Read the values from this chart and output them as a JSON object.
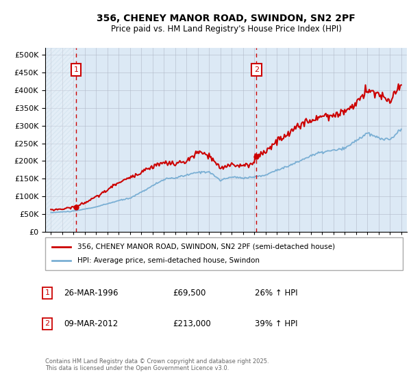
{
  "title_line1": "356, CHENEY MANOR ROAD, SWINDON, SN2 2PF",
  "title_line2": "Price paid vs. HM Land Registry's House Price Index (HPI)",
  "plot_bg_color": "#dce9f5",
  "hatch_color": "#b8cfe0",
  "grid_color": "#b0b8c8",
  "red_line_color": "#cc0000",
  "blue_line_color": "#7aafd4",
  "marker_color": "#cc0000",
  "vline_color": "#cc0000",
  "annotation_box_color": "#cc0000",
  "legend_label_red": "356, CHENEY MANOR ROAD, SWINDON, SN2 2PF (semi-detached house)",
  "legend_label_blue": "HPI: Average price, semi-detached house, Swindon",
  "purchase1_date": "26-MAR-1996",
  "purchase1_price": 69500,
  "purchase1_hpi": "26% ↑ HPI",
  "purchase1_year": 1996.23,
  "purchase2_date": "09-MAR-2012",
  "purchase2_price": 213000,
  "purchase2_hpi": "39% ↑ HPI",
  "purchase2_year": 2012.19,
  "footer_text": "Contains HM Land Registry data © Crown copyright and database right 2025.\nThis data is licensed under the Open Government Licence v3.0.",
  "ylim": [
    0,
    520000
  ],
  "xlim_start": 1993.5,
  "xlim_end": 2025.5,
  "hpi_years": [
    1994,
    1995,
    1996,
    1997,
    1998,
    1999,
    2000,
    2001,
    2002,
    2003,
    2004,
    2005,
    2006,
    2007,
    2008,
    2009,
    2010,
    2011,
    2012,
    2013,
    2014,
    2015,
    2016,
    2017,
    2018,
    2019,
    2020,
    2021,
    2022,
    2023,
    2024,
    2025
  ],
  "hpi_values": [
    54000,
    56000,
    58000,
    64000,
    70000,
    79000,
    88000,
    95000,
    112000,
    130000,
    148000,
    152000,
    160000,
    168000,
    170000,
    145000,
    155000,
    152000,
    155000,
    160000,
    175000,
    185000,
    200000,
    215000,
    225000,
    230000,
    235000,
    258000,
    278000,
    265000,
    260000,
    290000
  ],
  "red_years_seg1": [
    1994,
    1995,
    1996,
    1997,
    1998,
    1999,
    2000,
    2001,
    2002,
    2003,
    2004,
    2005,
    2006,
    2007,
    2008,
    2009,
    2010,
    2011,
    2012
  ],
  "red_values_seg1": [
    62000,
    64000,
    70000,
    82000,
    98000,
    118000,
    140000,
    152000,
    170000,
    185000,
    195000,
    192000,
    198000,
    225000,
    215000,
    178000,
    192000,
    185000,
    195000
  ],
  "red_years_seg2": [
    2012,
    2013,
    2014,
    2015,
    2016,
    2017,
    2018,
    2019,
    2020,
    2021,
    2022,
    2023,
    2024,
    2025
  ],
  "red_values_seg2": [
    213000,
    225000,
    258000,
    278000,
    300000,
    318000,
    328000,
    330000,
    338000,
    362000,
    400000,
    388000,
    370000,
    415000
  ]
}
